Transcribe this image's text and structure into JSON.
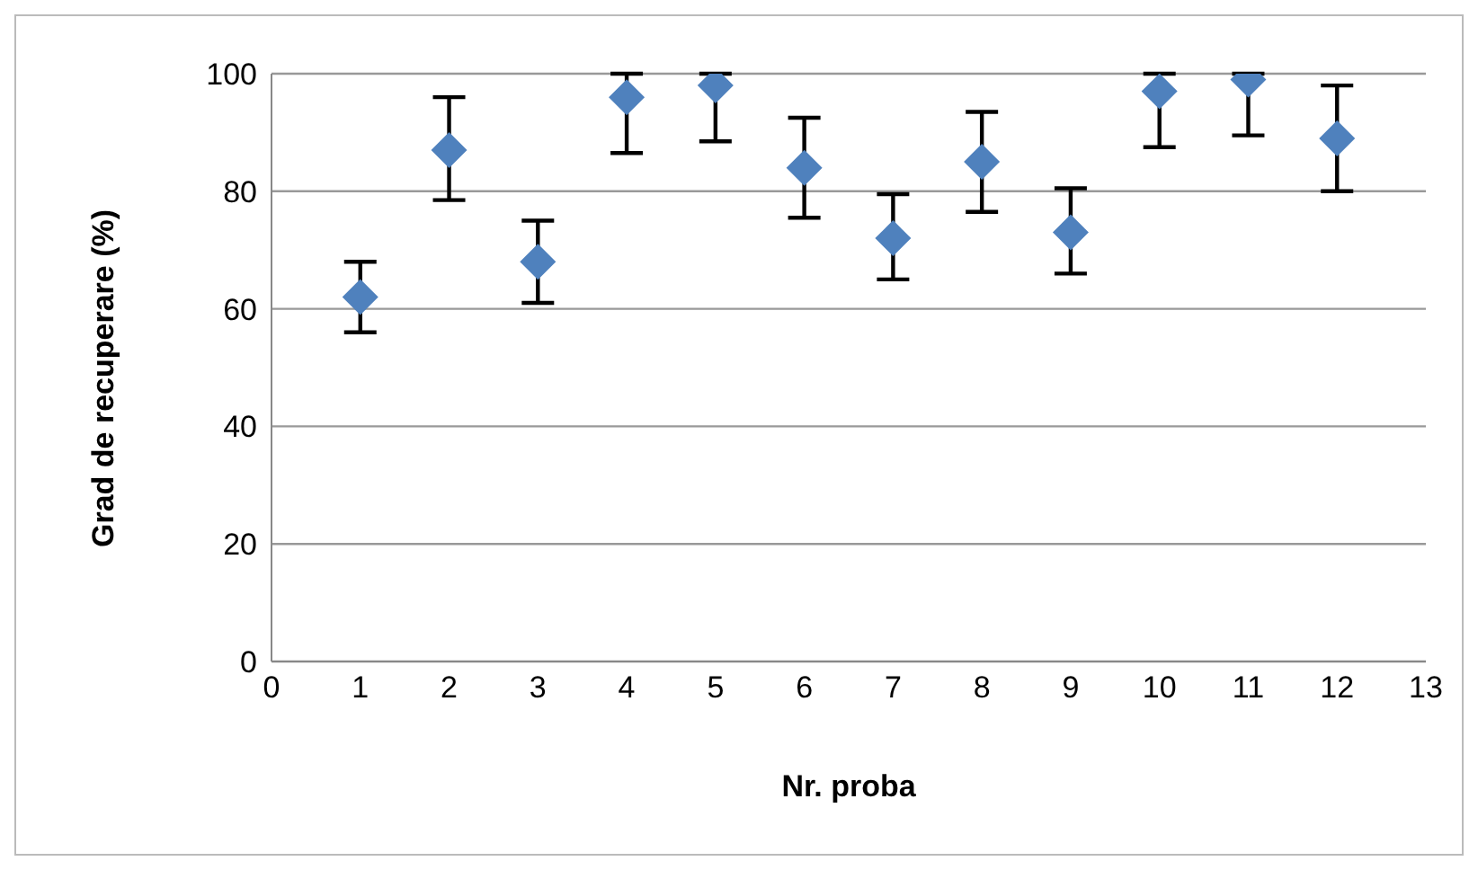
{
  "chart_data": {
    "type": "scatter",
    "xlabel": "Nr. proba",
    "ylabel": "Grad de recuperare (%)",
    "x": [
      1,
      2,
      3,
      4,
      5,
      6,
      7,
      8,
      9,
      10,
      11,
      12
    ],
    "values": [
      62,
      87,
      68,
      96,
      98,
      84,
      72,
      85,
      73,
      97,
      99,
      89
    ],
    "errors": [
      [
        56,
        68
      ],
      [
        78.5,
        96
      ],
      [
        61,
        75
      ],
      [
        86.5,
        100
      ],
      [
        88.5,
        100
      ],
      [
        75.5,
        92.5
      ],
      [
        65,
        79.5
      ],
      [
        76.5,
        93.5
      ],
      [
        66,
        80.5
      ],
      [
        87.5,
        100
      ],
      [
        89.5,
        100
      ],
      [
        80,
        98
      ]
    ],
    "color": "#4f81bd",
    "marker": "diamond",
    "xlim": [
      0,
      13
    ],
    "xticks": [
      0,
      1,
      2,
      3,
      4,
      5,
      6,
      7,
      8,
      9,
      10,
      11,
      12,
      13
    ],
    "ylim": [
      0,
      100
    ],
    "yticks": [
      0,
      20,
      40,
      60,
      80,
      100
    ],
    "grid": "y"
  }
}
